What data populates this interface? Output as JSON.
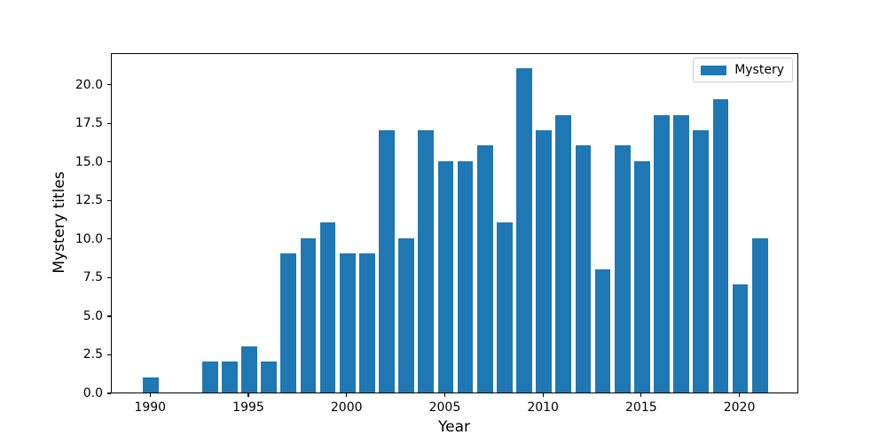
{
  "chart_data": {
    "type": "bar",
    "title": "",
    "xlabel": "Year",
    "ylabel": "Mystery titles",
    "legend": {
      "label": "Mystery",
      "position": "upper right"
    },
    "bar_color": "#1f77b4",
    "axis_color": "#000000",
    "grid": false,
    "bar_width_years": 0.8,
    "x": [
      1990,
      1993,
      1994,
      1995,
      1996,
      1997,
      1998,
      1999,
      2000,
      2001,
      2002,
      2003,
      2004,
      2005,
      2006,
      2007,
      2008,
      2009,
      2010,
      2011,
      2012,
      2013,
      2014,
      2015,
      2016,
      2017,
      2018,
      2019,
      2020,
      2021
    ],
    "values": [
      1,
      2,
      2,
      3,
      2,
      9,
      10,
      11,
      9,
      9,
      17,
      10,
      17,
      15,
      15,
      16,
      11,
      21,
      17,
      18,
      16,
      8,
      16,
      15,
      18,
      18,
      17,
      19,
      7,
      10
    ],
    "xlim": [
      1988,
      2023
    ],
    "ylim": [
      0,
      22.05
    ],
    "xticks": [
      1990,
      1995,
      2000,
      2005,
      2010,
      2015,
      2020
    ],
    "xtick_labels": [
      "1990",
      "1995",
      "2000",
      "2005",
      "2010",
      "2015",
      "2020"
    ],
    "yticks": [
      0,
      2.5,
      5,
      7.5,
      10,
      12.5,
      15,
      17.5,
      20
    ],
    "ytick_labels": [
      "0.0",
      "2.5",
      "5.0",
      "7.5",
      "10.0",
      "12.5",
      "15.0",
      "17.5",
      "20.0"
    ]
  }
}
